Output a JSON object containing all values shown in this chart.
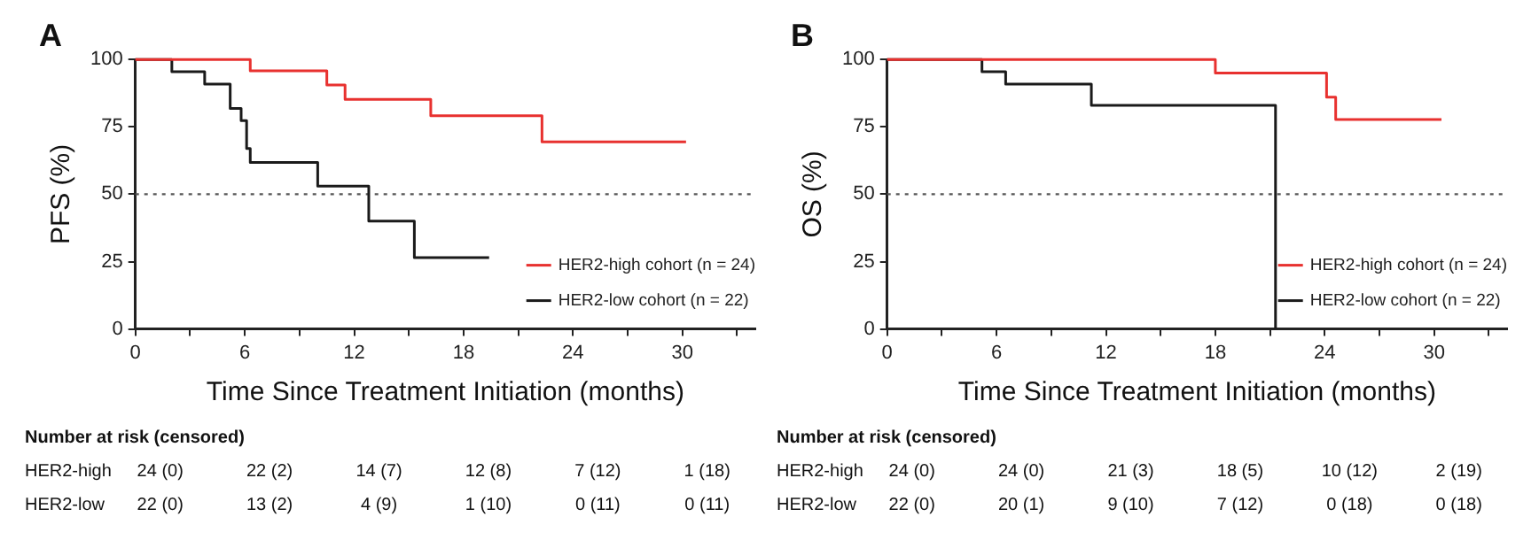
{
  "chart_data": [
    {
      "type": "step",
      "title": "A",
      "xlabel": "Time Since Treatment Initiation (months)",
      "ylabel": "PFS (%)",
      "xlim": [
        0,
        34
      ],
      "xticks": [
        0,
        {
          "value": 3,
          "label": null
        },
        6,
        {
          "value": 9,
          "label": null
        },
        12,
        {
          "value": 15,
          "label": null
        },
        18,
        {
          "value": 21,
          "label": null
        },
        24,
        {
          "value": 27,
          "label": null
        },
        30,
        {
          "value": 33,
          "label": null
        }
      ],
      "ylim": [
        0,
        100
      ],
      "yticks": [
        0,
        25,
        50,
        75,
        100
      ],
      "grid": false,
      "legend": "bottom right",
      "line_style": "solid",
      "ref_lines": [
        {
          "axis": "y",
          "value": 50,
          "color": "#555555",
          "line_style": "dotted"
        }
      ],
      "series": [
        {
          "name": "HER2-high cohort (n = 24)",
          "color": "#e8312f",
          "x": [
            0,
            6.3,
            10.5,
            11.5,
            16.2,
            22.3,
            30.2
          ],
          "values": [
            100,
            95.8,
            90.5,
            85.2,
            79.1,
            69.4,
            69.4
          ]
        },
        {
          "name": "HER2-low cohort (n = 22)",
          "color": "#1a1a1a",
          "x": [
            0,
            2,
            3.8,
            5.2,
            5.8,
            6.1,
            6.3,
            10,
            12.8,
            15.3,
            19.4
          ],
          "values": [
            100,
            95.5,
            90.9,
            81.8,
            77.3,
            67,
            61.8,
            53,
            40,
            26.5,
            26.5
          ]
        }
      ],
      "annotations": [
        "Number at risk (censored)",
        "HER2-high",
        "24 (0)",
        "22 (2)",
        "14 (7)",
        "12 (8)",
        "7 (12)",
        "1 (18)",
        "HER2-low",
        "22 (0)",
        "13 (2)",
        "4 (9)",
        "1 (10)",
        "0 (11)",
        "0 (11)"
      ]
    },
    {
      "type": "step",
      "title": "B",
      "xlabel": "Time Since Treatment Initiation (months)",
      "ylabel": "OS (%)",
      "xlim": [
        0,
        34
      ],
      "xticks": [
        0,
        {
          "value": 3,
          "label": null
        },
        6,
        {
          "value": 9,
          "label": null
        },
        12,
        {
          "value": 15,
          "label": null
        },
        18,
        {
          "value": 21,
          "label": null
        },
        24,
        {
          "value": 27,
          "label": null
        },
        30,
        {
          "value": 33,
          "label": null
        }
      ],
      "ylim": [
        0,
        100
      ],
      "yticks": [
        0,
        25,
        50,
        75,
        100
      ],
      "grid": false,
      "legend": "bottom right",
      "line_style": "solid",
      "ref_lines": [
        {
          "axis": "y",
          "value": 50,
          "color": "#555555",
          "line_style": "dotted"
        }
      ],
      "series": [
        {
          "name": "HER2-high cohort (n = 24)",
          "color": "#e8312f",
          "x": [
            0,
            18,
            24.1,
            24.6,
            30.4
          ],
          "values": [
            100,
            95,
            86,
            77.7,
            77.7
          ]
        },
        {
          "name": "HER2-low cohort (n = 22)",
          "color": "#1a1a1a",
          "x": [
            0,
            5.2,
            6.5,
            11.2,
            21.3
          ],
          "values": [
            100,
            95.5,
            90.9,
            83,
            0
          ]
        }
      ],
      "annotations": [
        "Number at risk (censored)",
        "HER2-high",
        "24 (0)",
        "24 (0)",
        "21 (3)",
        "18 (5)",
        "10 (12)",
        "2 (19)",
        "HER2-low",
        "22 (0)",
        "20 (1)",
        "9 (10)",
        "7 (12)",
        "0 (18)",
        "0 (18)"
      ]
    }
  ]
}
